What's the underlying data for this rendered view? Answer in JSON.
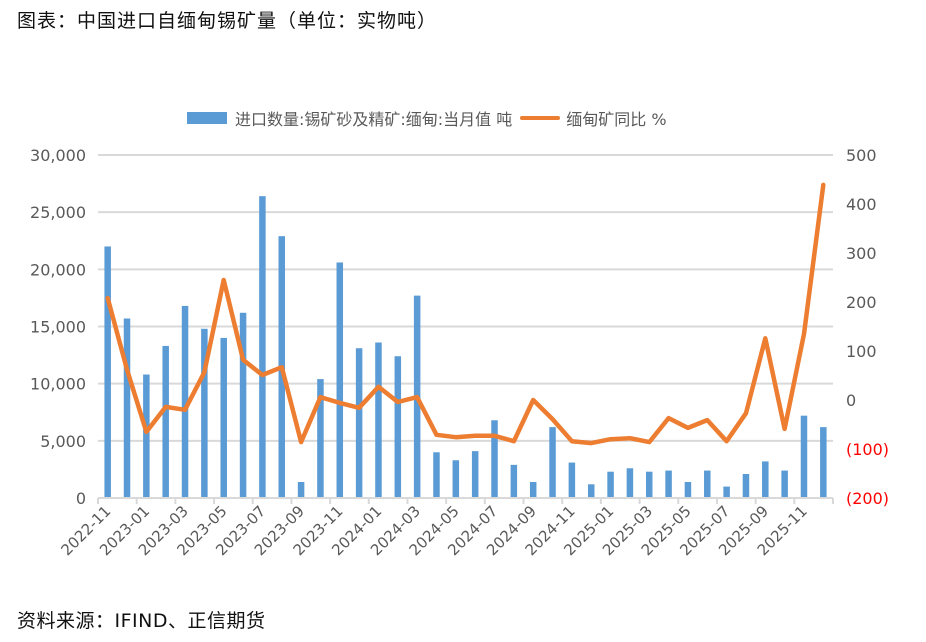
{
  "title": "图表：中国进口自缅甸锡矿量（单位：实物吨）",
  "source": "资料来源：IFIND、正信期货",
  "legend": {
    "bar_label": "进口数量:锡矿砂及精矿:缅甸:当月值 吨",
    "line_label": "缅甸矿同比 %"
  },
  "colors": {
    "bar": "#5B9BD5",
    "line": "#ED7D31",
    "grid": "#D9D9D9",
    "axis_text": "#595959",
    "negative_text": "#FF0000"
  },
  "chart_data": {
    "type": "bar+line",
    "title": "图表：中国进口自缅甸锡矿量（单位：实物吨）",
    "xlabel": "",
    "ylabel": "",
    "y2label": "",
    "ylim": [
      0,
      30000
    ],
    "y2lim": [
      -200,
      500
    ],
    "yticks": [
      "0",
      "5,000",
      "10,000",
      "15,000",
      "20,000",
      "25,000",
      "30,000"
    ],
    "y2ticks": [
      "(200)",
      "(100)",
      "0",
      "100",
      "200",
      "300",
      "400",
      "500"
    ],
    "grid": true,
    "legend_position": "top",
    "categories": [
      "2022-11",
      "2022-12",
      "2023-01",
      "2023-02",
      "2023-03",
      "2023-04",
      "2023-05",
      "2023-06",
      "2023-07",
      "2023-08",
      "2023-09",
      "2023-10",
      "2023-11",
      "2023-12",
      "2024-01",
      "2024-02",
      "2024-03",
      "2024-04",
      "2024-05",
      "2024-06",
      "2024-07",
      "2024-08",
      "2024-09",
      "2024-10",
      "2024-11",
      "2024-12",
      "2025-01",
      "2025-02",
      "2025-03",
      "2025-04",
      "2025-05",
      "2025-06",
      "2025-07",
      "2025-08",
      "2025-09",
      "2025-10",
      "2025-11",
      "2025-12"
    ],
    "xtick_labels": [
      "2022-11",
      "2023-01",
      "2023-03",
      "2023-05",
      "2023-07",
      "2023-09",
      "2023-11",
      "2024-01",
      "2024-03",
      "2024-05",
      "2024-07",
      "2024-09",
      "2024-11",
      "2025-01",
      "2025-03",
      "2025-05",
      "2025-07",
      "2025-09",
      "2025-11"
    ],
    "series": [
      {
        "name": "进口数量:锡矿砂及精矿:缅甸:当月值 吨",
        "type": "bar",
        "axis": "left",
        "values": [
          22000,
          15700,
          10800,
          13300,
          16800,
          14800,
          14000,
          16200,
          26400,
          22900,
          1400,
          10400,
          20600,
          13100,
          13600,
          12400,
          17700,
          4000,
          3300,
          4100,
          6800,
          2900,
          1400,
          6200,
          3100,
          1200,
          2300,
          2600,
          2300,
          2400,
          1400,
          2400,
          1000,
          2100,
          3200,
          2400,
          7200,
          6200
        ]
      },
      {
        "name": "缅甸矿同比 %",
        "type": "line",
        "axis": "right",
        "values": [
          208,
          62,
          -65,
          -14,
          -20,
          57,
          245,
          82,
          51,
          67,
          -86,
          6,
          -6,
          -16,
          27,
          -4,
          6,
          -71,
          -76,
          -73,
          -73,
          -84,
          0,
          -39,
          -84,
          -88,
          -80,
          -78,
          -86,
          -37,
          -57,
          -41,
          -84,
          -27,
          126,
          -59,
          135,
          439
        ]
      }
    ]
  }
}
